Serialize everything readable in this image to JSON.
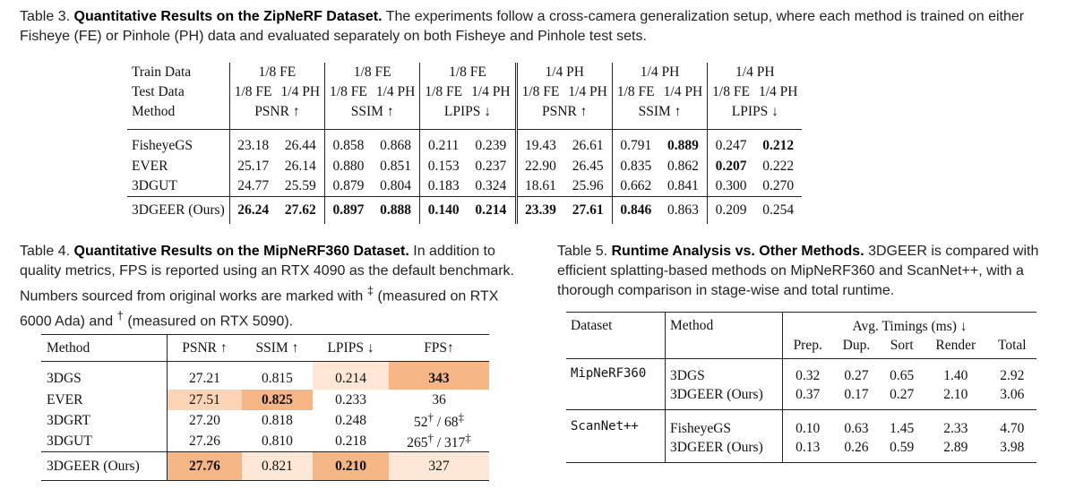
{
  "table3": {
    "caption_label": "Table 3.",
    "caption_title": "Quantitative Results on the ZipNeRF Dataset.",
    "caption_rest": " The experiments follow a cross-camera generalization setup, where each method is trained on either Fisheye (FE) or Pinhole (PH) data and evaluated separately on both Fisheye and Pinhole test sets.",
    "row_labels": [
      "Train Data",
      "Test Data",
      "Method"
    ],
    "train": [
      "1/8 FE",
      "1/8 FE",
      "1/8 FE",
      "1/4 PH",
      "1/4 PH",
      "1/4 PH"
    ],
    "test": [
      "1/8 FE",
      "1/4 PH"
    ],
    "metrics": [
      "PSNR ↑",
      "SSIM ↑",
      "LPIPS ↓",
      "PSNR ↑",
      "SSIM ↑",
      "LPIPS ↓"
    ],
    "rows": [
      {
        "method": "FisheyeGS",
        "values": [
          "23.18",
          "26.44",
          "0.858",
          "0.868",
          "0.211",
          "0.239",
          "19.43",
          "26.61",
          "0.791",
          "0.889",
          "0.247",
          "0.212"
        ]
      },
      {
        "method": "EVER",
        "values": [
          "25.17",
          "26.14",
          "0.880",
          "0.851",
          "0.153",
          "0.237",
          "22.90",
          "26.45",
          "0.835",
          "0.862",
          "0.207",
          "0.222"
        ]
      },
      {
        "method": "3DGUT",
        "values": [
          "24.77",
          "25.59",
          "0.879",
          "0.804",
          "0.183",
          "0.324",
          "18.61",
          "25.96",
          "0.662",
          "0.841",
          "0.300",
          "0.270"
        ]
      },
      {
        "method": "3DGEER (Ours)",
        "values": [
          "26.24",
          "27.62",
          "0.897",
          "0.888",
          "0.140",
          "0.214",
          "23.39",
          "27.61",
          "0.846",
          "0.863",
          "0.209",
          "0.254"
        ]
      }
    ]
  },
  "table4": {
    "caption_label": "Table 4.",
    "caption_title": "Quantitative Results on the MipNeRF360 Dataset.",
    "caption_rest_1": " In addition to quality metrics, FPS is reported using an RTX 4090 as the default benchmark. Numbers sourced from original works are marked with ",
    "mark_ddagger": "‡",
    "caption_rest_2": " (measured on RTX 6000 Ada) and ",
    "mark_dagger": "†",
    "caption_rest_3": " (measured on RTX 5090).",
    "headers": [
      "Method",
      "PSNR ↑",
      "SSIM ↑",
      "LPIPS ↓",
      "FPS↑"
    ],
    "rows": [
      {
        "method": "3DGS",
        "psnr": "27.21",
        "ssim": "0.815",
        "lpips": "0.214",
        "fps": "343"
      },
      {
        "method": "EVER",
        "psnr": "27.51",
        "ssim": "0.825",
        "lpips": "0.233",
        "fps": "36"
      },
      {
        "method": "3DGRT",
        "psnr": "27.20",
        "ssim": "0.818",
        "lpips": "0.248",
        "fps_a": "52",
        "fps_a_mark": "†",
        "fps_sep": " / ",
        "fps_b": "68",
        "fps_b_mark": "‡"
      },
      {
        "method": "3DGUT",
        "psnr": "27.26",
        "ssim": "0.810",
        "lpips": "0.218",
        "fps_a": "265",
        "fps_a_mark": "†",
        "fps_sep": " / ",
        "fps_b": "317",
        "fps_b_mark": "‡"
      },
      {
        "method": "3DGEER (Ours)",
        "psnr": "27.76",
        "ssim": "0.821",
        "lpips": "0.210",
        "fps": "327"
      }
    ],
    "highlight_colors": {
      "best": "#f6b585",
      "second": "#fad4b5",
      "third": "#fde6d3"
    }
  },
  "table5": {
    "caption_label": "Table 5.",
    "caption_title": "Runtime Analysis vs. Other Methods.",
    "caption_rest": " 3DGEER is compared with efficient splatting-based methods on MipNeRF360 and ScanNet++, with a thorough comparison in stage-wise and total runtime.",
    "h_dataset": "Dataset",
    "h_method": "Method",
    "h_group": "Avg. Timings (ms) ↓",
    "h_cols": [
      "Prep.",
      "Dup.",
      "Sort",
      "Render",
      "Total"
    ],
    "groups": [
      {
        "dataset": "MipNeRF360",
        "rows": [
          {
            "method": "3DGS",
            "values": [
              "0.32",
              "0.27",
              "0.65",
              "1.40",
              "2.92"
            ]
          },
          {
            "method": "3DGEER (Ours)",
            "values": [
              "0.37",
              "0.17",
              "0.27",
              "2.10",
              "3.06"
            ]
          }
        ]
      },
      {
        "dataset": "ScanNet++",
        "rows": [
          {
            "method": "FisheyeGS",
            "values": [
              "0.10",
              "0.63",
              "1.45",
              "2.33",
              "4.70"
            ]
          },
          {
            "method": "3DGEER (Ours)",
            "values": [
              "0.13",
              "0.26",
              "0.59",
              "2.89",
              "3.98"
            ]
          }
        ]
      }
    ]
  }
}
